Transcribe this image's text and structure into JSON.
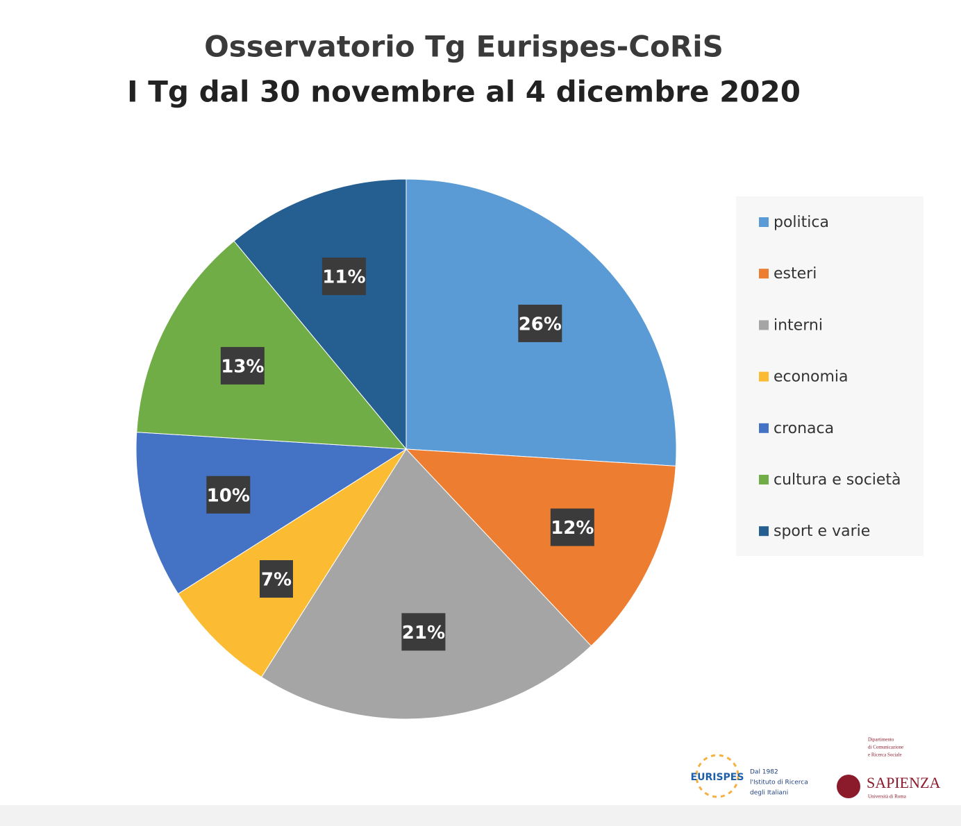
{
  "chart_data": {
    "type": "pie",
    "title": "Osservatorio Tg Eurispes-CoRiS",
    "subtitle": "I Tg dal 30 novembre al 4 dicembre 2020",
    "categories": [
      "politica",
      "esteri",
      "interni",
      "economia",
      "cronaca",
      "cultura e società",
      "sport e varie"
    ],
    "values": [
      26,
      12,
      21,
      7,
      10,
      13,
      11
    ],
    "value_labels": [
      "26%",
      "12%",
      "21%",
      "7%",
      "10%",
      "13%",
      "11%"
    ],
    "colors": [
      "#5b9bd5",
      "#ed7d31",
      "#a5a5a5",
      "#fbbc34",
      "#4472c4",
      "#70ad47",
      "#255e91"
    ],
    "legend": "right"
  },
  "footer": {
    "eurispes": {
      "name": "EURISPES",
      "lines": [
        "Dal 1982",
        "l'Istituto di Ricerca",
        "degli Italiani"
      ]
    },
    "sapienza": {
      "department": [
        "Dipartimento",
        "di Comunicazione",
        "e Ricerca Sociale"
      ],
      "name": "SAPIENZA",
      "university": "Università di Roma"
    }
  }
}
